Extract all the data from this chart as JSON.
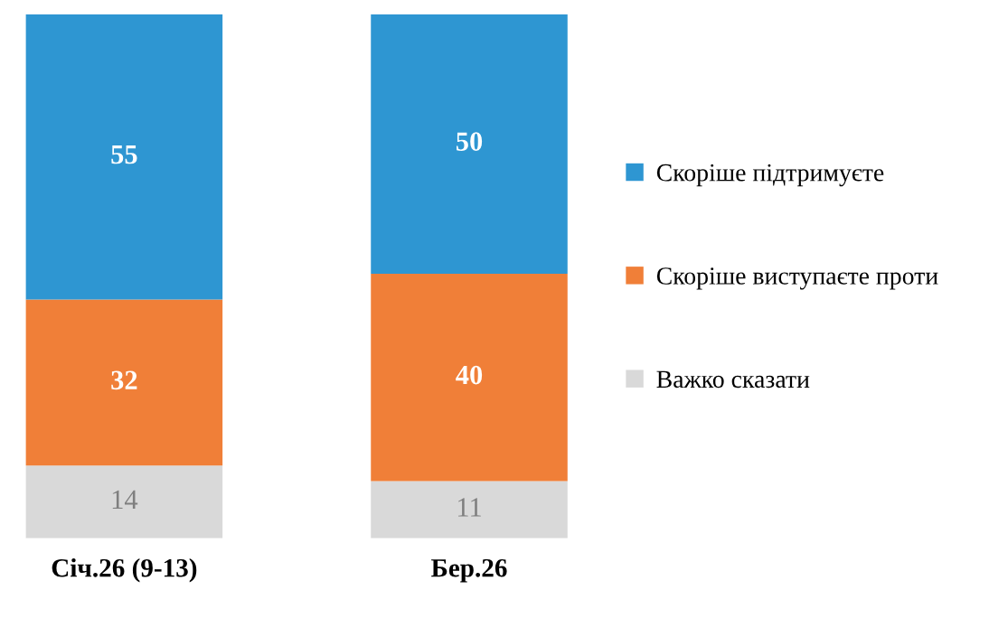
{
  "chart_data": {
    "type": "bar",
    "stacked": true,
    "data_labels": true,
    "legend": "right",
    "categories": [
      "Січ.26 (9-13)",
      "Бер.26"
    ],
    "series": [
      {
        "name": "Важко сказати",
        "color": "#d9d9d9",
        "values": [
          14,
          11
        ]
      },
      {
        "name": "Скоріше виступаєте проти",
        "color": "#f07f38",
        "values": [
          32,
          40
        ]
      },
      {
        "name": "Скоріше підтримуєте",
        "color": "#2e96d2",
        "values": [
          55,
          50
        ]
      }
    ]
  }
}
